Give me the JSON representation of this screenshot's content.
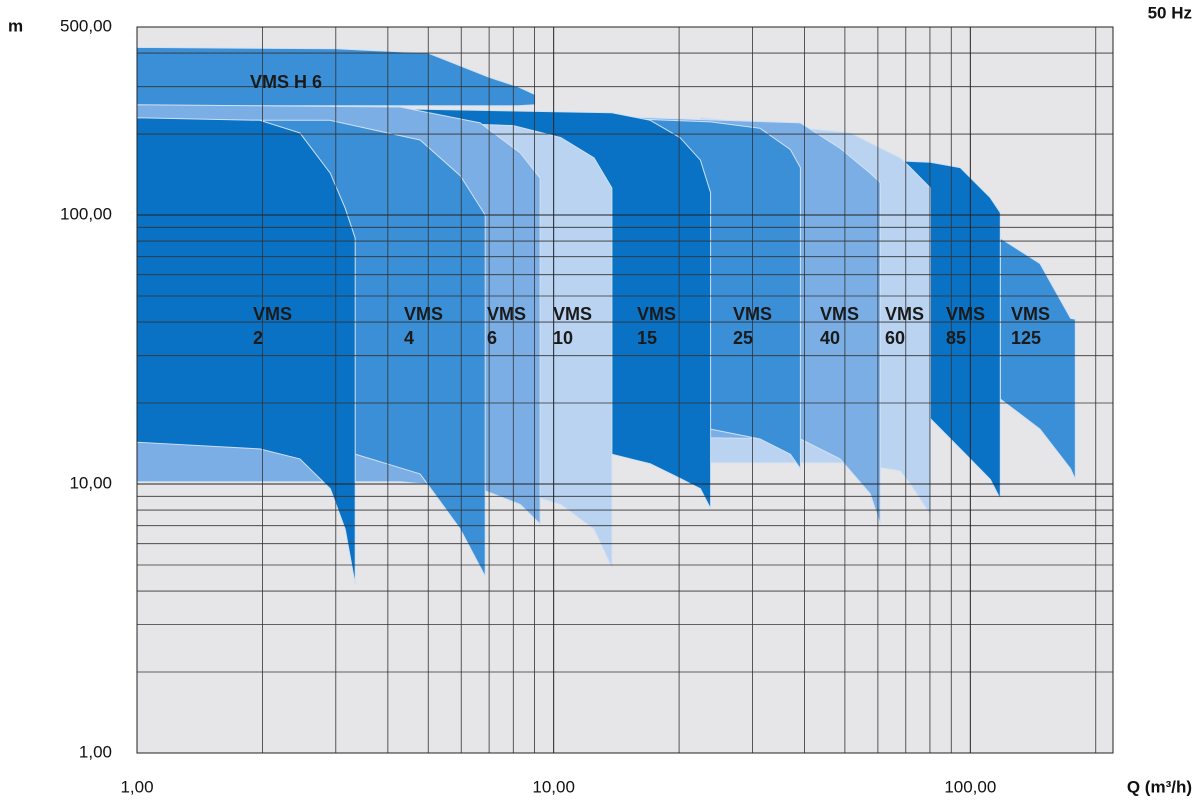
{
  "chart_data": {
    "type": "range_area",
    "xlabel": "Q (m³/h)",
    "ylabel": "m",
    "annotation": "50 Hz",
    "log_x": true,
    "log_y": true,
    "grid": true,
    "xlim": [
      1,
      220
    ],
    "ylim": [
      1,
      500
    ],
    "xticks": [
      {
        "value": 1,
        "label": "1,00"
      },
      {
        "value": 10,
        "label": "10,00"
      },
      {
        "value": 100,
        "label": "100,00"
      }
    ],
    "yticks": [
      {
        "value": 1,
        "label": "1,00"
      },
      {
        "value": 10,
        "label": "10,00"
      },
      {
        "value": 100,
        "label": "100,00"
      },
      {
        "value": 500,
        "label": "500,00"
      }
    ],
    "xgrid": [
      2,
      3,
      4,
      5,
      6,
      7,
      8,
      9,
      20,
      30,
      40,
      50,
      60,
      70,
      80,
      90,
      200
    ],
    "ygrid": [
      2,
      3,
      4,
      5,
      6,
      7,
      8,
      9,
      20,
      30,
      40,
      50,
      60,
      70,
      80,
      90,
      200,
      300,
      400
    ],
    "series": [
      {
        "name": "VMS H 6",
        "color": "#3a8fd6",
        "x": [
          1,
          3,
          5,
          7,
          8.2,
          9.03
        ],
        "upper": [
          420,
          415,
          400,
          325,
          300,
          280
        ],
        "lower": [
          255,
          255,
          255,
          255,
          255,
          257
        ]
      },
      {
        "name": "VMS 2",
        "color": "#0a72c4",
        "x": [
          1,
          1.97,
          2.46,
          2.91,
          3.16,
          3.34
        ],
        "upper": [
          230,
          225,
          202,
          143,
          106,
          82
        ],
        "lower": [
          14.3,
          13.5,
          12.4,
          9.6,
          6.8,
          4.24
        ]
      },
      {
        "name": "VMS 4",
        "color": "#3a8fd6",
        "x": [
          1,
          2.9,
          4.78,
          5.97,
          6.85
        ],
        "upper": [
          225,
          225,
          190,
          140,
          100
        ],
        "lower": [
          14.3,
          13.8,
          10.9,
          6.8,
          4.54
        ]
      },
      {
        "name": "VMS 6",
        "color": "#7aaee4",
        "x": [
          1,
          4.28,
          6.66,
          8.31,
          9.28
        ],
        "upper": [
          257,
          252,
          220,
          170,
          137
        ],
        "lower": [
          10.2,
          10.2,
          9.6,
          8.4,
          7.1
        ]
      },
      {
        "name": "VMS 10",
        "color": "#b9d3f1",
        "x": [
          5.34,
          8,
          10.4,
          12.5,
          13.8
        ],
        "upper": [
          220,
          215,
          194,
          163,
          126
        ],
        "lower": [
          9.8,
          9.5,
          8.4,
          6.8,
          4.9
        ]
      },
      {
        "name": "VMS 15",
        "color": "#0a72c4",
        "x": [
          3.25,
          13.8,
          17.05,
          20.1,
          22.5,
          23.8
        ],
        "upper": [
          250,
          240,
          225,
          194,
          160,
          121
        ],
        "lower": [
          13,
          12.9,
          11.9,
          10.5,
          9.6,
          8.1
        ]
      },
      {
        "name": "VMS 25",
        "color": "#3a8fd6",
        "x": [
          7.44,
          23.8,
          31.3,
          37,
          39.1
        ],
        "upper": [
          238,
          222,
          210,
          175,
          150
        ],
        "lower": [
          16,
          16,
          14.7,
          12.9,
          11.4
        ]
      },
      {
        "name": "VMS 40",
        "color": "#7aaee4",
        "x": [
          14,
          39.1,
          48.7,
          57.5,
          60.8
        ],
        "upper": [
          232,
          220,
          177,
          143,
          132
        ],
        "lower": [
          15,
          14.7,
          12.4,
          9.2,
          7.1
        ]
      },
      {
        "name": "VMS 60",
        "color": "#b9d3f1",
        "x": [
          22.5,
          51.5,
          67.9,
          71.8,
          80.2
        ],
        "upper": [
          230,
          202,
          163,
          150,
          126
        ],
        "lower": [
          12,
          12,
          11.2,
          10,
          7.7
        ]
      },
      {
        "name": "VMS 85",
        "color": "#0a72c4",
        "x": [
          66.1,
          80.2,
          94.6,
          111.7,
          118
        ],
        "upper": [
          159,
          157,
          150,
          116,
          102
        ],
        "lower": [
          18,
          17.5,
          13.5,
          10.4,
          8.8
        ]
      },
      {
        "name": "VMS 125",
        "color": "#3a8fd6",
        "x": [
          118,
          147,
          174,
          178.6
        ],
        "upper": [
          82,
          66,
          41.3,
          41
        ],
        "lower": [
          20.7,
          16,
          11.4,
          10.4
        ]
      }
    ]
  }
}
